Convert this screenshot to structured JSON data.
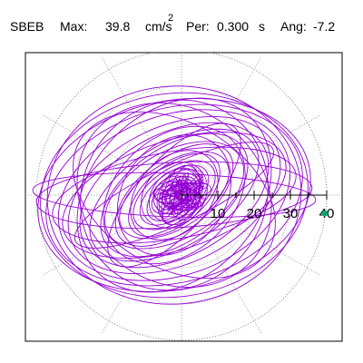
{
  "header": {
    "station": "SBEB",
    "max_label": "Max:",
    "max_value": "39.8",
    "max_unit": "cm/s",
    "max_unit_exp": "2",
    "per_label": "Per:",
    "per_value": "0.300",
    "per_unit": "s",
    "ang_label": "Ang:",
    "ang_value": "-7.2"
  },
  "chart_data": {
    "type": "polar-orbit",
    "title": "",
    "radial_ticks": [
      10,
      20,
      30,
      40
    ],
    "radial_tick_labels": [
      "10",
      "20",
      "30",
      "40"
    ],
    "r_max": 40,
    "grid": true,
    "max_acceleration": 39.8,
    "period_s": 0.3,
    "angle_deg": -7.2,
    "max_point": {
      "r": 39.8,
      "theta_deg": -7.2
    },
    "colors": {
      "trace": "#9400d3",
      "grid": "#888888",
      "marker": "#00a86b",
      "axis": "#000000"
    }
  }
}
